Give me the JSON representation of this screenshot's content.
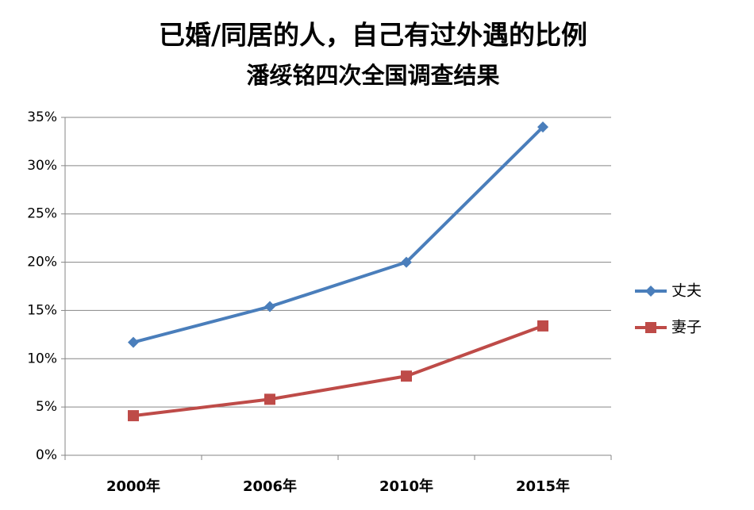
{
  "chart_data": {
    "type": "line",
    "title": "已婚/同居的人，自己有过外遇的比例",
    "subtitle": "潘绥铭四次全国调查结果",
    "categories": [
      "2000年",
      "2006年",
      "2010年",
      "2015年"
    ],
    "series": [
      {
        "name": "丈夫",
        "color": "#4a7ebb",
        "marker": "diamond",
        "values": [
          11.7,
          15.4,
          20,
          34
        ]
      },
      {
        "name": "妻子",
        "color": "#be4b48",
        "marker": "square",
        "values": [
          4.1,
          5.8,
          8.2,
          13.4
        ]
      }
    ],
    "ylim": [
      0,
      35
    ],
    "yticks": [
      {
        "value": 0,
        "label": "0%"
      },
      {
        "value": 5,
        "label": "5%"
      },
      {
        "value": 10,
        "label": "10%"
      },
      {
        "value": 15,
        "label": "15%"
      },
      {
        "value": 20,
        "label": "20%"
      },
      {
        "value": 25,
        "label": "25%"
      },
      {
        "value": 30,
        "label": "30%"
      },
      {
        "value": 35,
        "label": "35%"
      }
    ],
    "grid": true,
    "legend": "right"
  }
}
